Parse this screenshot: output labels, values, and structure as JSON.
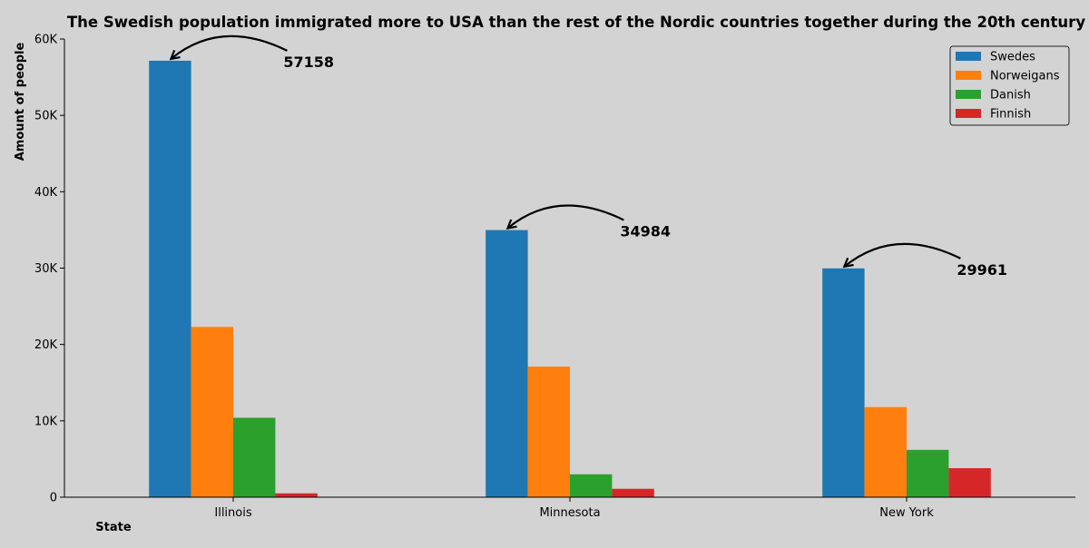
{
  "chart_data": {
    "type": "bar",
    "title": "The Swedish population immigrated more to USA than the rest of the Nordic countries together during the 20th century",
    "xlabel": "State",
    "ylabel": "Amount of people",
    "categories": [
      "Illinois",
      "Minnesota",
      "New York"
    ],
    "series": [
      {
        "name": "Swedes",
        "color": "#1f77b4",
        "values": [
          57158,
          34984,
          29961
        ]
      },
      {
        "name": "Norweigans",
        "color": "#ff7f0e",
        "values": [
          22300,
          17100,
          11800
        ]
      },
      {
        "name": "Danish",
        "color": "#2ca02c",
        "values": [
          10400,
          3000,
          6200
        ]
      },
      {
        "name": "Finnish",
        "color": "#d62728",
        "values": [
          500,
          1100,
          3800
        ]
      }
    ],
    "ylim": [
      0,
      60000
    ],
    "yticks": [
      0,
      10000,
      20000,
      30000,
      40000,
      50000,
      60000
    ],
    "ytick_labels": [
      "0",
      "10K",
      "20K",
      "30K",
      "40K",
      "50K",
      "60K"
    ],
    "annotations": [
      {
        "category": "Illinois",
        "series": "Swedes",
        "text": "57158"
      },
      {
        "category": "Minnesota",
        "series": "Swedes",
        "text": "34984"
      },
      {
        "category": "New York",
        "series": "Swedes",
        "text": "29961"
      }
    ],
    "legend_position": "top-right",
    "grid": false
  }
}
